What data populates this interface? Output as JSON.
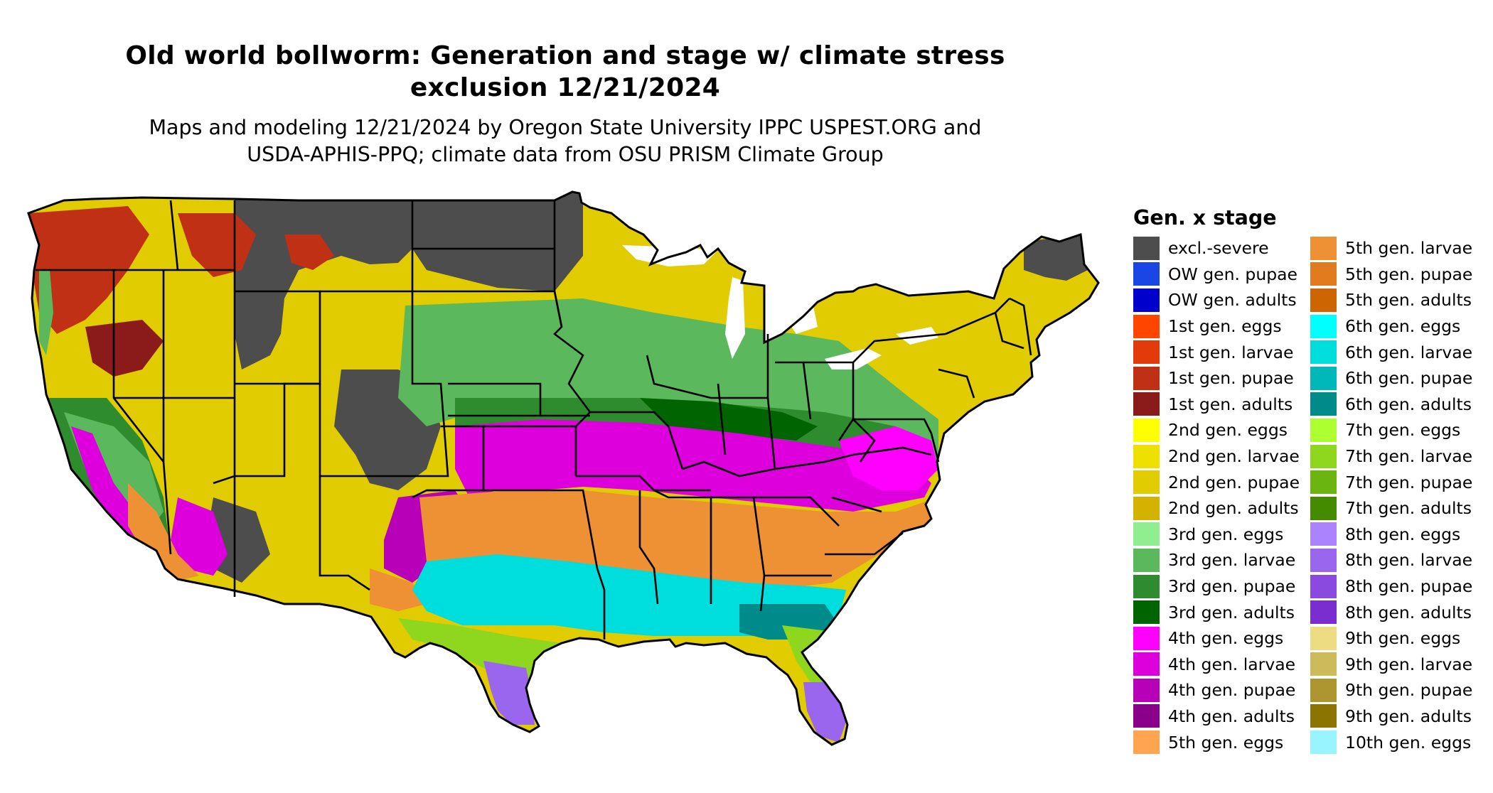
{
  "header": {
    "title_line1": "Old world bollworm: Generation and stage w/ climate stress",
    "title_line2": "exclusion 12/21/2024",
    "subtitle_line1": "Maps and modeling 12/21/2024 by Oregon State University IPPC USPEST.ORG and",
    "subtitle_line2": "USDA-APHIS-PPQ; climate data from OSU PRISM Climate Group"
  },
  "legend": {
    "title": "Gen. x stage",
    "column1": [
      {
        "label": "excl.-severe",
        "color": "#4d4d4d"
      },
      {
        "label": "OW gen. pupae",
        "color": "#1a46e6"
      },
      {
        "label": "OW gen. adults",
        "color": "#0000cd"
      },
      {
        "label": "1st gen. eggs",
        "color": "#ff4500"
      },
      {
        "label": "1st gen. larvae",
        "color": "#e23a0a"
      },
      {
        "label": "1st gen. pupae",
        "color": "#bf3014"
      },
      {
        "label": "1st gen. adults",
        "color": "#8b1a1a"
      },
      {
        "label": "2nd gen. eggs",
        "color": "#ffff00"
      },
      {
        "label": "2nd gen. larvae",
        "color": "#eee000"
      },
      {
        "label": "2nd gen. pupae",
        "color": "#e0cc00"
      },
      {
        "label": "2nd gen. adults",
        "color": "#d4b200"
      },
      {
        "label": "3rd gen. eggs",
        "color": "#90ee90"
      },
      {
        "label": "3rd gen. larvae",
        "color": "#5cb85c"
      },
      {
        "label": "3rd gen. pupae",
        "color": "#2e8b2e"
      },
      {
        "label": "3rd gen. adults",
        "color": "#006400"
      },
      {
        "label": "4th gen. eggs",
        "color": "#ff00ff"
      },
      {
        "label": "4th gen. larvae",
        "color": "#dd00dd"
      },
      {
        "label": "4th gen. pupae",
        "color": "#b800b8"
      },
      {
        "label": "4th gen. adults",
        "color": "#8b008b"
      },
      {
        "label": "5th gen. eggs",
        "color": "#ffa54f"
      }
    ],
    "column2": [
      {
        "label": "5th gen. larvae",
        "color": "#ee9034"
      },
      {
        "label": "5th gen. pupae",
        "color": "#e07b1e"
      },
      {
        "label": "5th gen. adults",
        "color": "#cd6600"
      },
      {
        "label": "6th gen. eggs",
        "color": "#00ffff"
      },
      {
        "label": "6th gen. larvae",
        "color": "#00dddd"
      },
      {
        "label": "6th gen. pupae",
        "color": "#00b8b8"
      },
      {
        "label": "6th gen. adults",
        "color": "#008b8b"
      },
      {
        "label": "7th gen. eggs",
        "color": "#adff2f"
      },
      {
        "label": "7th gen. larvae",
        "color": "#8fd61e"
      },
      {
        "label": "7th gen. pupae",
        "color": "#6cb510"
      },
      {
        "label": "7th gen. adults",
        "color": "#458b00"
      },
      {
        "label": "8th gen. eggs",
        "color": "#ab82ff"
      },
      {
        "label": "8th gen. larvae",
        "color": "#9b66ee"
      },
      {
        "label": "8th gen. pupae",
        "color": "#8a4ae0"
      },
      {
        "label": "8th gen. adults",
        "color": "#7a2ed0"
      },
      {
        "label": "9th gen. eggs",
        "color": "#eedc82"
      },
      {
        "label": "9th gen. larvae",
        "color": "#cdba5a"
      },
      {
        "label": "9th gen. pupae",
        "color": "#ad9630"
      },
      {
        "label": "9th gen. adults",
        "color": "#8b7500"
      },
      {
        "label": "10th gen. eggs",
        "color": "#98f5ff"
      }
    ]
  }
}
